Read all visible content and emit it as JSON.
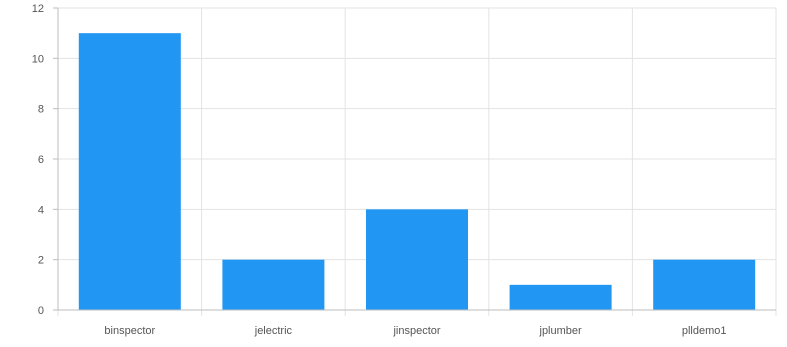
{
  "chart_data": {
    "type": "bar",
    "categories": [
      "binspector",
      "jelectric",
      "jinspector",
      "jplumber",
      "plldemo1"
    ],
    "values": [
      11,
      2,
      4,
      1,
      2
    ],
    "ylim": [
      0,
      12
    ],
    "yticks": [
      0,
      2,
      4,
      6,
      8,
      10,
      12
    ],
    "grid": true,
    "colors": {
      "bar": "#2196f3",
      "grid": "#e3e3e3",
      "axis": "#bdbdbd",
      "text": "#555555"
    }
  }
}
